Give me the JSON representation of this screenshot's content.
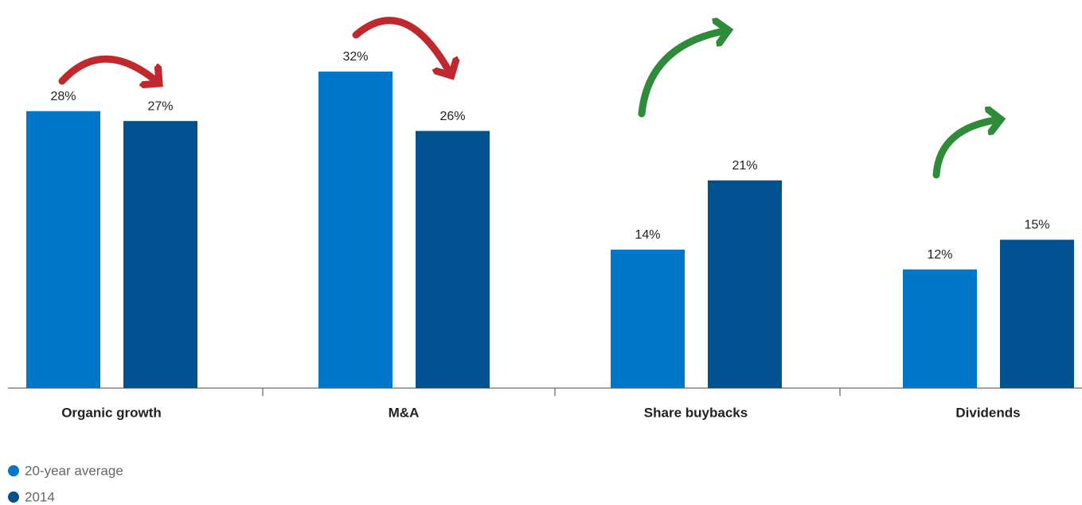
{
  "chart_data": {
    "type": "bar",
    "categories": [
      "Organic growth",
      "M&A",
      "Share buybacks",
      "Dividends"
    ],
    "series": [
      {
        "name": "20-year average",
        "color": "#0077c8",
        "values": [
          28,
          32,
          14,
          12
        ],
        "value_labels": [
          "28%",
          "32%",
          "14%",
          "12%"
        ]
      },
      {
        "name": "2014",
        "color": "#00518f",
        "values": [
          27,
          26,
          21,
          15
        ],
        "value_labels": [
          "27%",
          "26%",
          "21%",
          "15%"
        ]
      }
    ]
  }
}
